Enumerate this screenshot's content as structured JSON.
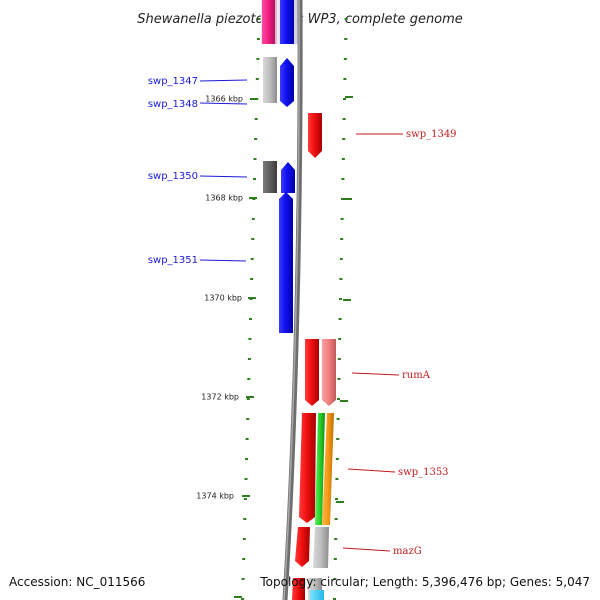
{
  "title": "Shewanella piezotolerans WP3, complete genome",
  "footer": {
    "accession": "Accession: NC_011566",
    "topology": "Topology: circular; Length: 5,396,476 bp; Genes: 5,047"
  },
  "ticks": [
    "1366 kbp",
    "1368 kbp",
    "1370 kbp",
    "1372 kbp",
    "1374 kbp"
  ],
  "genes_left": [
    {
      "label": "swp_1347"
    },
    {
      "label": "swp_1348"
    },
    {
      "label": "swp_1350"
    },
    {
      "label": "swp_1351"
    }
  ],
  "genes_right": [
    {
      "label": "swp_1349"
    },
    {
      "label": "rumA"
    },
    {
      "label": "swp_1353"
    },
    {
      "label": "mazG"
    }
  ],
  "colors": {
    "forward_strand": "#1010f0",
    "reverse_strand": "#f01010",
    "backbone": "#808080",
    "dots": "#2e7d1e",
    "label_left": "#1a1ad6",
    "label_right": "#c41a1a"
  }
}
